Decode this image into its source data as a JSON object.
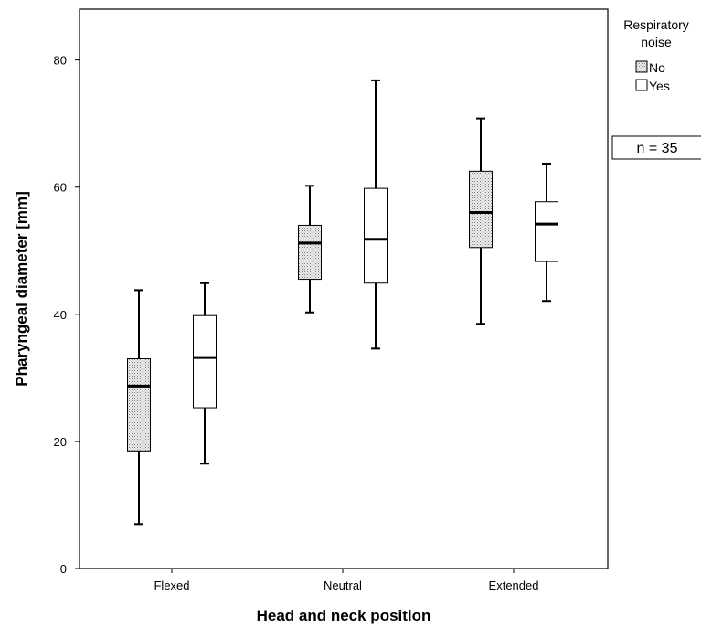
{
  "chart_data": {
    "type": "boxplot",
    "xlabel": "Head and neck position",
    "ylabel": "Pharyngeal diameter [mm]",
    "ylim": [
      0,
      88
    ],
    "yticks": [
      0,
      20,
      40,
      60,
      80
    ],
    "categories": [
      "Flexed",
      "Neutral",
      "Extended"
    ],
    "legend": {
      "title_line1": "Respiratory",
      "title_line2": "noise",
      "placement": "top-right, outside plot"
    },
    "annotation": "n = 35",
    "series": [
      {
        "name": "No",
        "fill": "dotted-grey",
        "boxes": [
          {
            "category": "Flexed",
            "min": 7,
            "q1": 18.5,
            "median": 28.7,
            "q3": 33,
            "max": 43.8
          },
          {
            "category": "Neutral",
            "min": 40.3,
            "q1": 45.5,
            "median": 51.2,
            "q3": 54,
            "max": 60.2
          },
          {
            "category": "Extended",
            "min": 38.5,
            "q1": 50.5,
            "median": 56,
            "q3": 62.5,
            "max": 70.8
          }
        ]
      },
      {
        "name": "Yes",
        "fill": "white",
        "boxes": [
          {
            "category": "Flexed",
            "min": 16.5,
            "q1": 25.3,
            "median": 33.2,
            "q3": 39.8,
            "max": 44.9
          },
          {
            "category": "Neutral",
            "min": 34.6,
            "q1": 44.9,
            "median": 51.8,
            "q3": 59.8,
            "max": 76.8
          },
          {
            "category": "Extended",
            "min": 42.1,
            "q1": 48.3,
            "median": 54.2,
            "q3": 57.7,
            "max": 63.7
          }
        ]
      }
    ]
  }
}
